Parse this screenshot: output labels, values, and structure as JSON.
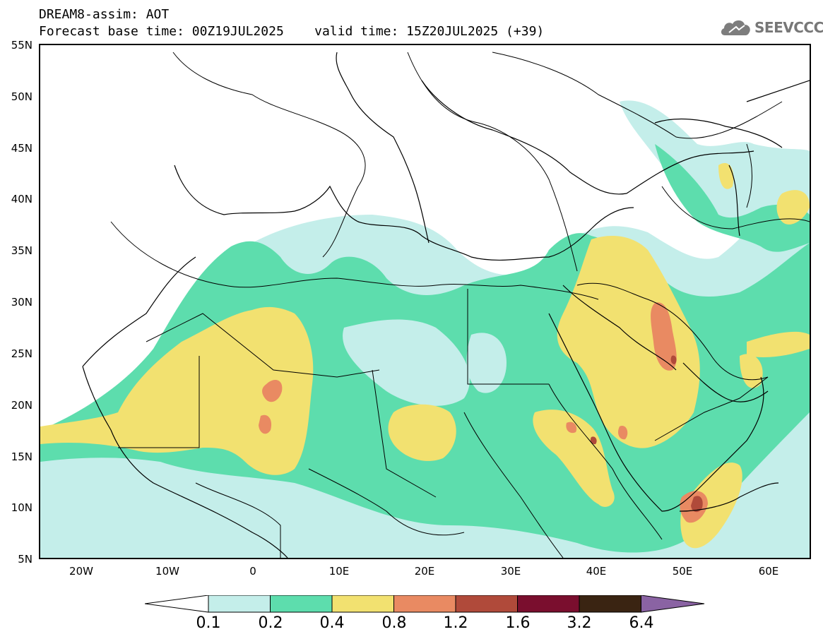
{
  "header": {
    "line1": "DREAM8-assim: AOT",
    "line2": "Forecast base time: 00Z19JUL2025    valid time: 15Z20JUL2025 (+39)"
  },
  "logo": {
    "text": "SEEVCCC",
    "icon": "cloud-icon"
  },
  "map": {
    "lat_labels": [
      "55N",
      "50N",
      "45N",
      "40N",
      "35N",
      "30N",
      "25N",
      "20N",
      "15N",
      "10N",
      "5N"
    ],
    "lon_labels": [
      "20W",
      "10W",
      "0",
      "10E",
      "20E",
      "30E",
      "40E",
      "50E",
      "60E"
    ],
    "lon_range": [
      -25,
      65
    ],
    "lat_range": [
      5,
      55
    ],
    "field": "AOT"
  },
  "colorbar": {
    "labels": [
      "0.1",
      "0.2",
      "0.4",
      "0.8",
      "1.2",
      "1.6",
      "3.2",
      "6.4"
    ],
    "colors": [
      "#c4eeea",
      "#5dddad",
      "#f2e170",
      "#e98a62",
      "#b04a3a",
      "#7a0e2e",
      "#3a2412",
      "#8a63a3"
    ]
  },
  "colors": {
    "c1": "#c4eeea",
    "c2": "#5dddad",
    "c3": "#f2e170",
    "c4": "#e98a62",
    "c5": "#b04a3a"
  }
}
